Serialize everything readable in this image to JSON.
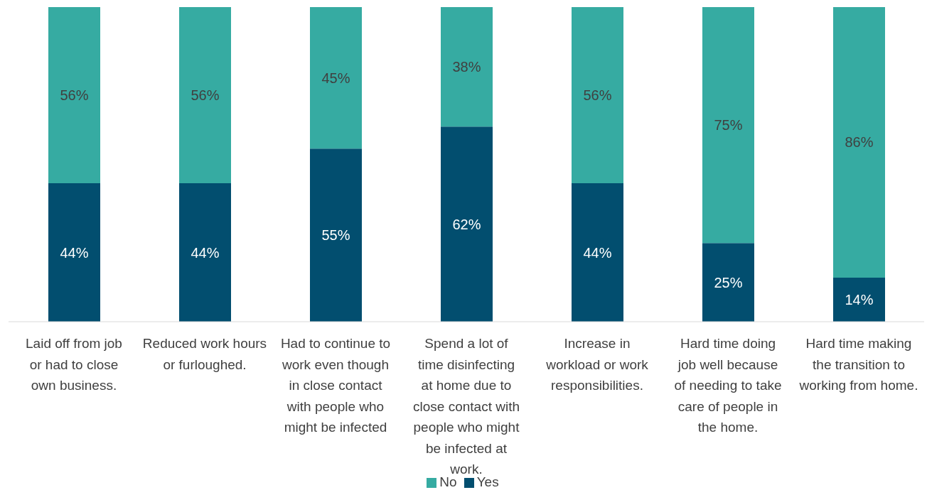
{
  "chart_data": {
    "type": "bar",
    "stacked": true,
    "legend": "bottom",
    "categories": [
      "Laid off from job or had to close own business.",
      "Reduced work hours or furloughed.",
      "Had to continue to work even though in close contact with people who might be infected",
      "Spend a lot of time disinfecting at home due to close contact with people who might be infected at work.",
      "Increase in workload or work responsibilities.",
      "Hard time doing job well because of needing to take care of people in the home.",
      "Hard time making the transition to working from home."
    ],
    "series": [
      {
        "name": "Yes",
        "color": "#024e6f",
        "values": [
          44,
          44,
          55,
          62,
          44,
          25,
          14
        ],
        "value_labels": [
          "44%",
          "44%",
          "55%",
          "62%",
          "44%",
          "25%",
          "14%"
        ]
      },
      {
        "name": "No",
        "color": "#36aba2",
        "values": [
          56,
          56,
          45,
          38,
          56,
          75,
          86
        ],
        "value_labels": [
          "56%",
          "56%",
          "45%",
          "38%",
          "56%",
          "75%",
          "86%"
        ]
      }
    ]
  }
}
